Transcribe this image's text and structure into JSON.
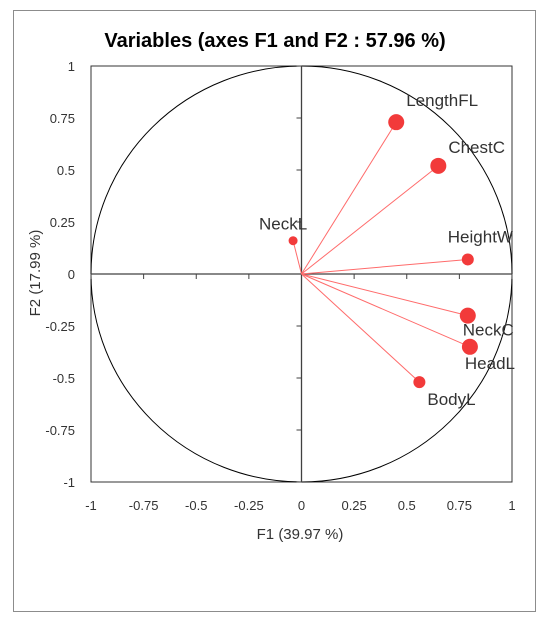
{
  "chart_data": {
    "type": "scatter",
    "title": "Variables (axes F1 and F2 : 57.96 %)",
    "xlabel": "F1 (39.97 %)",
    "ylabel": "F2 (17.99 %)",
    "xlim": [
      -1,
      1
    ],
    "ylim": [
      -1,
      1
    ],
    "x_ticks": [
      "-1",
      "-0.75",
      "-0.5",
      "-0.25",
      "0",
      "0.25",
      "0.5",
      "0.75",
      "1"
    ],
    "y_ticks": [
      "1",
      "0.75",
      "0.5",
      "0.25",
      "0",
      "-0.25",
      "-0.5",
      "-0.75",
      "-1"
    ],
    "unit_circle": true,
    "vector_color": "#ff6b6b",
    "point_color": "#f23a3a",
    "axis_color": "#404040",
    "points": [
      {
        "label": "LengthFL",
        "x": 0.45,
        "y": 0.73,
        "size": "large"
      },
      {
        "label": "ChestC",
        "x": 0.65,
        "y": 0.52,
        "size": "large"
      },
      {
        "label": "NeckL",
        "x": -0.04,
        "y": 0.16,
        "size": "small"
      },
      {
        "label": "HeightW",
        "x": 0.79,
        "y": 0.07,
        "size": "medium"
      },
      {
        "label": "NeckC",
        "x": 0.79,
        "y": -0.2,
        "size": "large"
      },
      {
        "label": "HeadL",
        "x": 0.8,
        "y": -0.35,
        "size": "large"
      },
      {
        "label": "BodyL",
        "x": 0.56,
        "y": -0.52,
        "size": "medium"
      }
    ]
  }
}
